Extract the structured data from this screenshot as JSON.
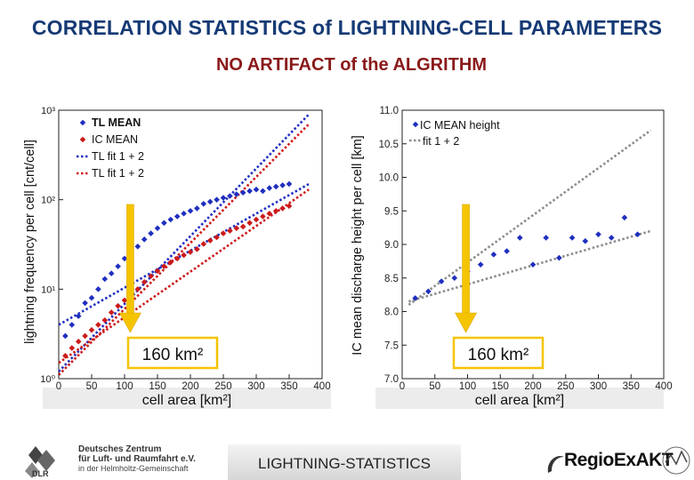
{
  "page": {
    "title": "CORRELATION STATISTICS of LIGHTNING-CELL PARAMETERS",
    "subtitle": "NO ARTIFACT of the ALGRITHM",
    "footer_center": "LIGHTNING-STATISTICS",
    "logo_left_line1": "Deutsches Zentrum",
    "logo_left_line2": "für Luft- und Raumfahrt e.V.",
    "logo_left_line3": "in der Helmholtz-Gemeinschaft",
    "logo_left_mark": "DLR",
    "logo_right": "RegioExAKT",
    "colors": {
      "blue": "#1f2fbf",
      "red": "#cc1a1a",
      "gray": "#8c8c8c",
      "arrow": "#f5c400",
      "title": "#163a75",
      "subtitle": "#8a1919"
    }
  },
  "chart_data": [
    {
      "type": "scatter",
      "ylabel": "lightning frequency per cell [cnt/cell]",
      "xlabel": "cell area [km²]",
      "xlim": [
        0,
        400
      ],
      "ylim": [
        1,
        1000
      ],
      "y_scale": "log",
      "xticks": [
        "0",
        "50",
        "100",
        "150",
        "200",
        "250",
        "300",
        "350",
        "400"
      ],
      "yticks": [
        "10⁰",
        "10¹",
        "10²",
        "10³"
      ],
      "legend": [
        "TL MEAN",
        "IC MEAN",
        "TL fit 1 + 2",
        "TL fit 1 + 2"
      ],
      "legend_position": "top-left",
      "annotation": "160 km²",
      "annotation_x": 160,
      "series": [
        {
          "name": "TL MEAN",
          "color": "#1f2fbf",
          "marker": "diamond",
          "x": [
            10,
            20,
            30,
            40,
            50,
            60,
            70,
            80,
            90,
            100,
            110,
            120,
            130,
            140,
            150,
            160,
            170,
            180,
            190,
            200,
            210,
            220,
            230,
            240,
            250,
            260,
            270,
            280,
            290,
            300,
            310,
            320,
            330,
            340,
            350
          ],
          "y": [
            3,
            4,
            5,
            7,
            8,
            10,
            13,
            15,
            18,
            22,
            26,
            30,
            36,
            42,
            48,
            55,
            60,
            65,
            70,
            75,
            80,
            90,
            95,
            100,
            105,
            110,
            115,
            120,
            125,
            130,
            125,
            135,
            140,
            145,
            150
          ]
        },
        {
          "name": "IC MEAN",
          "color": "#cc1a1a",
          "marker": "diamond",
          "x": [
            10,
            20,
            30,
            40,
            50,
            60,
            70,
            80,
            90,
            100,
            110,
            120,
            130,
            140,
            150,
            160,
            170,
            180,
            190,
            200,
            210,
            220,
            230,
            240,
            250,
            260,
            270,
            280,
            290,
            300,
            310,
            320,
            330,
            340,
            350
          ],
          "y": [
            1.8,
            2.2,
            2.6,
            3,
            3.5,
            4,
            4.5,
            5.5,
            6.5,
            7.5,
            9,
            10,
            12,
            14,
            16,
            18,
            20,
            22,
            24,
            26,
            28,
            32,
            35,
            38,
            42,
            45,
            48,
            50,
            55,
            60,
            65,
            70,
            75,
            80,
            85
          ]
        }
      ],
      "fits": [
        {
          "color": "#1f2fbf",
          "x": [
            0,
            380
          ],
          "y": [
            4,
            150
          ]
        },
        {
          "color": "#1f2fbf",
          "x": [
            0,
            380
          ],
          "y": [
            1.2,
            900
          ]
        },
        {
          "color": "#cc1a1a",
          "x": [
            0,
            380
          ],
          "y": [
            1.5,
            130
          ]
        },
        {
          "color": "#cc1a1a",
          "x": [
            0,
            380
          ],
          "y": [
            1.1,
            700
          ]
        }
      ]
    },
    {
      "type": "scatter",
      "ylabel": "IC mean discharge height per cell [km]",
      "xlabel": "cell area [km²]",
      "xlim": [
        0,
        400
      ],
      "ylim": [
        7.0,
        11.0
      ],
      "xticks": [
        "0",
        "50",
        "100",
        "150",
        "200",
        "250",
        "300",
        "350",
        "400"
      ],
      "yticks": [
        "7.0",
        "7.5",
        "8.0",
        "8.5",
        "9.0",
        "9.5",
        "10.0",
        "10.5",
        "11.0"
      ],
      "legend": [
        "IC MEAN height",
        "fit 1 + 2"
      ],
      "legend_position": "top-left",
      "annotation": "160 km²",
      "annotation_x": 160,
      "series": [
        {
          "name": "IC MEAN height",
          "color": "#1f2fbf",
          "marker": "diamond",
          "x": [
            20,
            40,
            60,
            80,
            100,
            120,
            140,
            160,
            180,
            200,
            220,
            240,
            260,
            280,
            300,
            320,
            340,
            360
          ],
          "y": [
            8.2,
            8.3,
            8.45,
            8.5,
            8.6,
            8.7,
            8.85,
            8.9,
            9.1,
            8.7,
            9.1,
            8.8,
            9.1,
            9.05,
            9.15,
            9.1,
            9.4,
            9.15
          ]
        }
      ],
      "fits": [
        {
          "color": "#8c8c8c",
          "x": [
            10,
            380
          ],
          "y": [
            8.15,
            9.2
          ]
        },
        {
          "color": "#8c8c8c",
          "x": [
            10,
            380
          ],
          "y": [
            8.1,
            10.7
          ]
        }
      ]
    }
  ]
}
